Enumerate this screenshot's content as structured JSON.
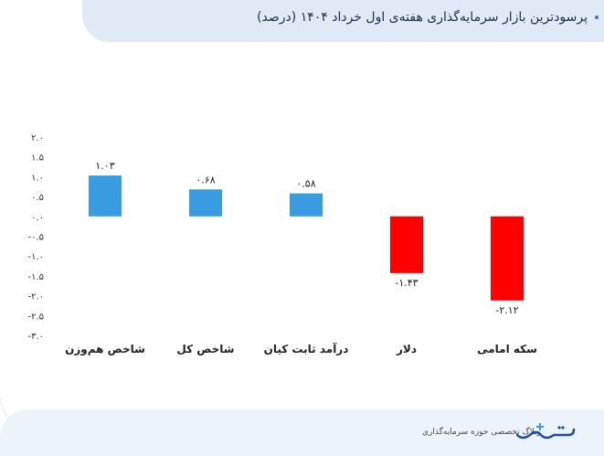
{
  "header": {
    "title": "پرسودترین بازار سرمایه‌گذاری هفته‌ی اول خرداد ۱۴۰۴ (درصد)"
  },
  "footer": {
    "brand_text": "وبلاگ تخصصی حوزه سرمایه‌گذاری",
    "logo_icon": "sarmayeh-logo-icon"
  },
  "colors": {
    "positive": "#3a9ce0",
    "negative": "#ff0000",
    "accent": "#2a7fd4"
  },
  "chart_data": {
    "type": "bar",
    "categories": [
      "شاخص هم‌وزن",
      "شاخص کل",
      "درآمد ثابت کیان",
      "دلار",
      "سکه امامی"
    ],
    "values": [
      1.03,
      0.68,
      0.58,
      -1.43,
      -2.12
    ],
    "data_labels": [
      "۱.۰۳",
      "۰.۶۸",
      "۰.۵۸",
      "-۱.۴۳",
      "-۲.۱۲"
    ],
    "y_ticks": [
      2.0,
      1.5,
      1.0,
      0.5,
      0.0,
      -0.5,
      -1.0,
      -1.5,
      -2.0,
      -2.5,
      -3.0
    ],
    "y_tick_labels": [
      "۲.۰",
      "۱.۵",
      "۱.۰",
      "۰.۵",
      "۰.۰",
      "-۰.۵",
      "-۱.۰",
      "-۱.۵",
      "-۲.۰",
      "-۲.۵",
      "-۳.۰"
    ],
    "ylim": [
      -3.0,
      2.0
    ],
    "grid": false,
    "legend": "none",
    "title": "پرسودترین بازار سرمایه‌گذاری هفته‌ی اول خرداد ۱۴۰۴ (درصد)"
  }
}
